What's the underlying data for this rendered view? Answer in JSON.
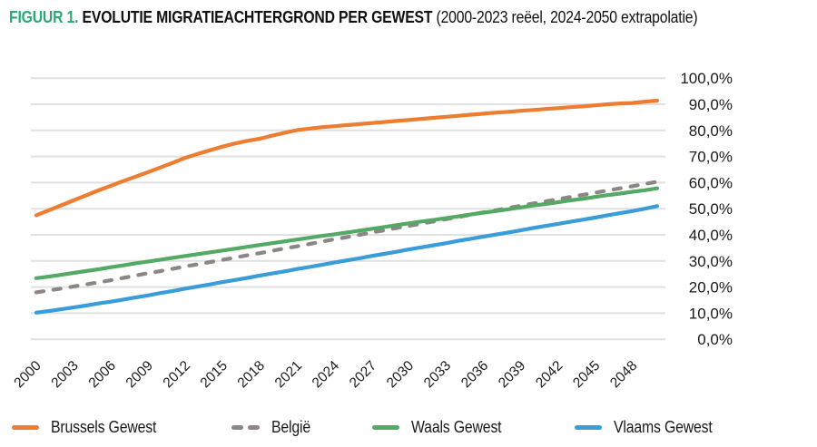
{
  "title": {
    "figure_label": "FIGUUR 1.",
    "main": "EVOLUTIE MIGRATIEACHTERGROND PER GEWEST",
    "note": "(2000-2023 reëel, 2024-2050 extrapolatie)"
  },
  "colors": {
    "figure_label": "#2aa876",
    "title_text": "#111111",
    "gridline": "#e1e1e1",
    "axis_text": "#1a1a1a"
  },
  "chart_data": {
    "type": "line",
    "title": "Evolutie migratieachtergrond per gewest (2000-2023 reëel, 2024-2050 extrapolatie)",
    "xlabel": "",
    "ylabel": "",
    "x_range": [
      2000,
      2050
    ],
    "y_range": [
      0,
      100
    ],
    "grid": "horizontal",
    "legend_position": "bottom",
    "x_ticks": [
      2000,
      2003,
      2006,
      2009,
      2012,
      2015,
      2018,
      2021,
      2024,
      2027,
      2030,
      2033,
      2036,
      2039,
      2042,
      2045,
      2048
    ],
    "y_ticks_percent": [
      0,
      10,
      20,
      30,
      40,
      50,
      60,
      70,
      80,
      90,
      100
    ],
    "y_tick_labels": [
      "0,0%",
      "10,0%",
      "20,0%",
      "30,0%",
      "40,0%",
      "50,0%",
      "60,0%",
      "70,0%",
      "80,0%",
      "90,0%",
      "100,0%"
    ],
    "series": [
      {
        "name": "Brussels Gewest",
        "color": "#ED7D31",
        "dash": false,
        "values": [
          47.5,
          49.4,
          51.3,
          53.2,
          55.1,
          57.0,
          58.8,
          60.6,
          62.3,
          64.0,
          65.8,
          67.6,
          69.5,
          71.0,
          72.4,
          73.8,
          75.0,
          76.0,
          76.8,
          78.0,
          79.1,
          80.1,
          80.7,
          81.2,
          81.6,
          82.0,
          82.4,
          82.8,
          83.2,
          83.6,
          84.0,
          84.4,
          84.8,
          85.2,
          85.6,
          86.0,
          86.4,
          86.8,
          87.1,
          87.5,
          87.8,
          88.2,
          88.5,
          88.9,
          89.2,
          89.6,
          90.0,
          90.3,
          90.5,
          91.0,
          91.4
        ]
      },
      {
        "name": "België",
        "color": "#8C8684",
        "dash": true,
        "values": [
          18.0,
          18.7,
          19.4,
          20.2,
          21.0,
          21.8,
          22.6,
          23.5,
          24.4,
          25.3,
          26.1,
          27.0,
          27.9,
          28.7,
          29.6,
          30.4,
          31.3,
          32.2,
          33.0,
          33.9,
          34.8,
          35.6,
          36.5,
          37.4,
          38.3,
          39.1,
          40.0,
          40.9,
          41.7,
          42.6,
          43.4,
          44.3,
          45.1,
          46.0,
          46.8,
          47.7,
          48.6,
          49.4,
          50.3,
          51.1,
          52.0,
          52.8,
          53.6,
          54.5,
          55.3,
          56.1,
          57.0,
          57.8,
          58.6,
          59.5,
          60.3
        ]
      },
      {
        "name": "Waals Gewest",
        "color": "#54A964",
        "dash": false,
        "values": [
          23.4,
          24.0,
          24.7,
          25.4,
          26.1,
          26.8,
          27.6,
          28.3,
          29.1,
          29.8,
          30.5,
          31.2,
          31.9,
          32.6,
          33.3,
          34.0,
          34.7,
          35.4,
          36.1,
          36.8,
          37.5,
          38.2,
          38.9,
          39.6,
          40.2,
          40.9,
          41.6,
          42.3,
          43.0,
          43.7,
          44.4,
          45.1,
          45.7,
          46.4,
          47.1,
          47.8,
          48.5,
          49.1,
          49.8,
          50.5,
          51.2,
          51.8,
          52.5,
          53.2,
          53.8,
          54.5,
          55.2,
          55.8,
          56.5,
          57.1,
          57.8
        ]
      },
      {
        "name": "Vlaams Gewest",
        "color": "#3A9CD9",
        "dash": false,
        "values": [
          10.2,
          10.8,
          11.5,
          12.2,
          12.9,
          13.7,
          14.4,
          15.2,
          16.0,
          16.8,
          17.7,
          18.5,
          19.4,
          20.2,
          21.0,
          21.9,
          22.7,
          23.5,
          24.4,
          25.2,
          26.0,
          26.9,
          27.7,
          28.5,
          29.4,
          30.2,
          31.0,
          31.9,
          32.7,
          33.5,
          34.4,
          35.2,
          36.0,
          36.8,
          37.7,
          38.5,
          39.3,
          40.1,
          40.9,
          41.7,
          42.6,
          43.4,
          44.2,
          45.0,
          45.8,
          46.6,
          47.5,
          48.3,
          49.1,
          50.0,
          51.0
        ]
      }
    ]
  }
}
